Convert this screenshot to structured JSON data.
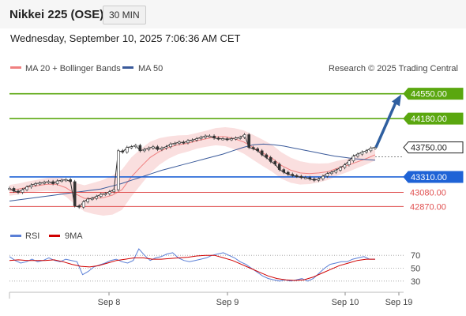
{
  "header": {
    "title": "Nikkei 225 (OSE)",
    "timeframe": "30 MIN"
  },
  "date_text": "Wednesday, September 10, 2025 7:06:36 AM CET",
  "legend": {
    "ma20": "MA 20 + Bollinger Bands",
    "ma50": "MA 50",
    "credit": "Research © 2025 Trading Central",
    "rsi": "RSI",
    "ma9": "9MA"
  },
  "colors": {
    "resistance": "#5aa70f",
    "support": "#1f63d6",
    "minor_support": "#e05050",
    "price": "#222222",
    "arrow": "#2f5fa0",
    "ma20": "#f08080",
    "ma50": "#3a5a9a"
  },
  "chart_data": {
    "type": "line",
    "price_ylim": [
      42650,
      44770
    ],
    "x_ticks": [
      "Sep 8",
      "Sep 9",
      "Sep 10",
      "Sep 19"
    ],
    "levels": [
      {
        "value": 44550,
        "label": "44550.00",
        "kind": "resistance"
      },
      {
        "value": 44180,
        "label": "44180.00",
        "kind": "resistance"
      },
      {
        "value": 43750,
        "label": "43750.00",
        "kind": "price"
      },
      {
        "value": 43310,
        "label": "43310.00",
        "kind": "support"
      },
      {
        "value": 43080,
        "label": "43080.00",
        "kind": "minor_support"
      },
      {
        "value": 42870,
        "label": "42870.00",
        "kind": "minor_support"
      }
    ],
    "price_series": [
      43140,
      43100,
      43080,
      43120,
      43160,
      43190,
      43210,
      43220,
      43230,
      43240,
      43210,
      43250,
      43260,
      43270,
      43240,
      42880,
      42860,
      42940,
      42980,
      42990,
      43020,
      43050,
      43060,
      43090,
      43120,
      43700,
      43680,
      43750,
      43760,
      43780,
      43700,
      43720,
      43740,
      43760,
      43720,
      43740,
      43760,
      43800,
      43810,
      43830,
      43820,
      43850,
      43860,
      43880,
      43900,
      43920,
      43920,
      43890,
      43880,
      43880,
      43870,
      43880,
      43890,
      43900,
      43940,
      43750,
      43730,
      43700,
      43640,
      43600,
      43540,
      43500,
      43420,
      43380,
      43350,
      43330,
      43320,
      43300,
      43300,
      43280,
      43260,
      43280,
      43320,
      43360,
      43380,
      43410,
      43450,
      43490,
      43550,
      43620,
      43650,
      43680,
      43700,
      43740,
      43750
    ],
    "ma50_series": [
      42950,
      42970,
      42990,
      43010,
      43030,
      43050,
      43070,
      43090,
      43110,
      43130,
      43170,
      43210,
      43260,
      43310,
      43360,
      43410,
      43450,
      43490,
      43530,
      43570,
      43610,
      43650,
      43700,
      43750,
      43790,
      43800,
      43790,
      43770,
      43740,
      43710,
      43680,
      43650,
      43620,
      43600,
      43580,
      43570,
      43560
    ],
    "ma20_series": [
      43110,
      43130,
      43160,
      43180,
      43200,
      43200,
      43150,
      43060,
      42990,
      42990,
      43000,
      43040,
      43120,
      43310,
      43460,
      43600,
      43690,
      43750,
      43790,
      43810,
      43850,
      43880,
      43910,
      43910,
      43880,
      43830,
      43750,
      43670,
      43590,
      43480,
      43410,
      43370,
      43360,
      43370,
      43390,
      43440,
      43480,
      43530,
      43580,
      43640
    ],
    "rsi_ylim": [
      20,
      80
    ],
    "rsi_ticks": [
      70,
      50,
      30
    ],
    "rsi_series": [
      68,
      62,
      58,
      60,
      64,
      60,
      62,
      66,
      62,
      60,
      64,
      62,
      60,
      40,
      45,
      52,
      55,
      58,
      62,
      64,
      60,
      58,
      62,
      80,
      70,
      62,
      66,
      68,
      72,
      74,
      66,
      62,
      60,
      62,
      64,
      66,
      70,
      72,
      74,
      70,
      66,
      60,
      56,
      50,
      44,
      38,
      34,
      32,
      30,
      32,
      30,
      32,
      34,
      30,
      34,
      42,
      50,
      56,
      58,
      60,
      60,
      64,
      66,
      68,
      64,
      64
    ],
    "ma9_series": [
      62,
      63,
      62,
      62,
      62,
      63,
      60,
      56,
      53,
      52,
      54,
      58,
      62,
      64,
      66,
      66,
      64,
      64,
      65,
      66,
      67,
      69,
      70,
      70,
      66,
      62,
      56,
      50,
      44,
      38,
      34,
      32,
      31,
      32,
      36,
      42,
      48,
      54,
      58,
      62,
      64,
      64
    ]
  }
}
